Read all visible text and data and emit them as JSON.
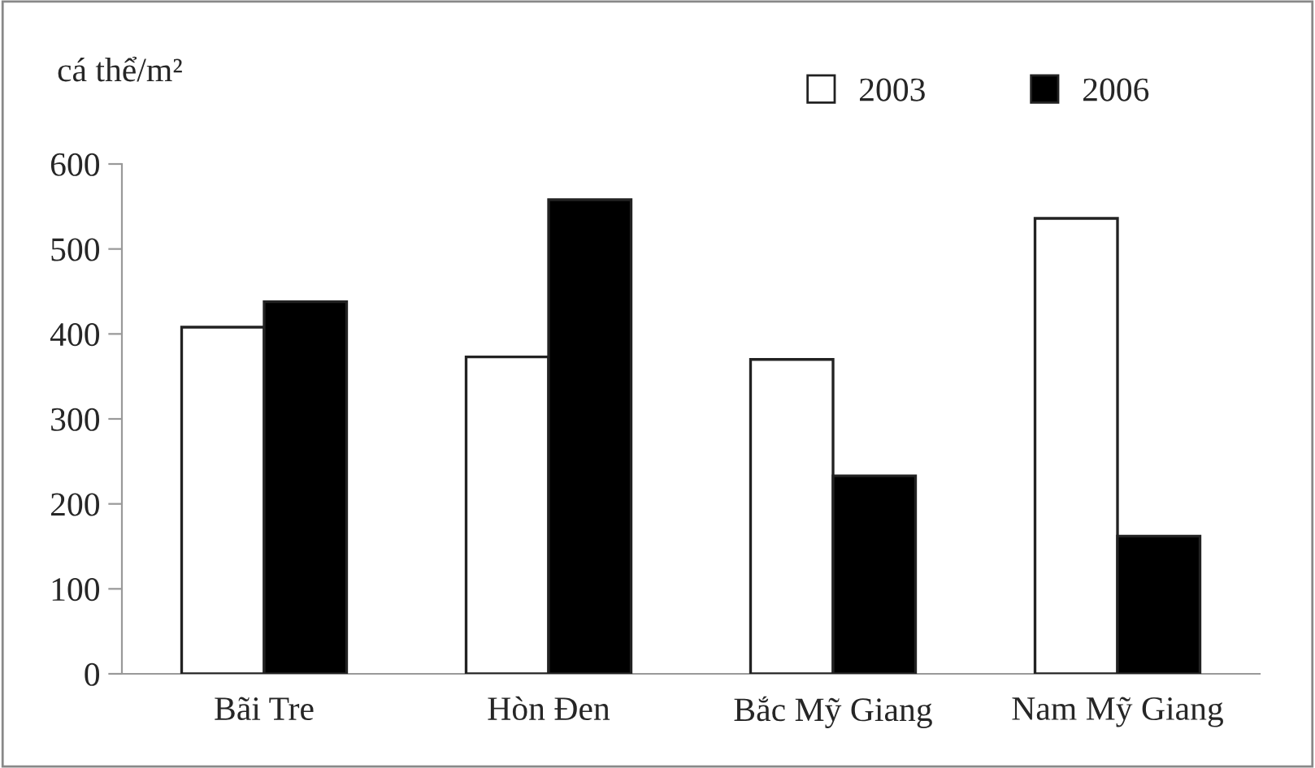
{
  "chart_data": {
    "type": "bar",
    "ylabel": "cá thể/m²",
    "categories": [
      "Bãi Tre",
      "Hòn Đen",
      "Bắc Mỹ Giang",
      "Nam Mỹ Giang"
    ],
    "series": [
      {
        "name": "2003",
        "color": "#ffffff",
        "values": [
          408,
          373,
          370,
          536
        ]
      },
      {
        "name": "2006",
        "color": "#000000",
        "values": [
          438,
          558,
          233,
          162
        ]
      }
    ],
    "ylim": [
      0,
      600
    ],
    "yticks": [
      0,
      100,
      200,
      300,
      400,
      500,
      600
    ],
    "grid": false,
    "legend": "top right"
  }
}
